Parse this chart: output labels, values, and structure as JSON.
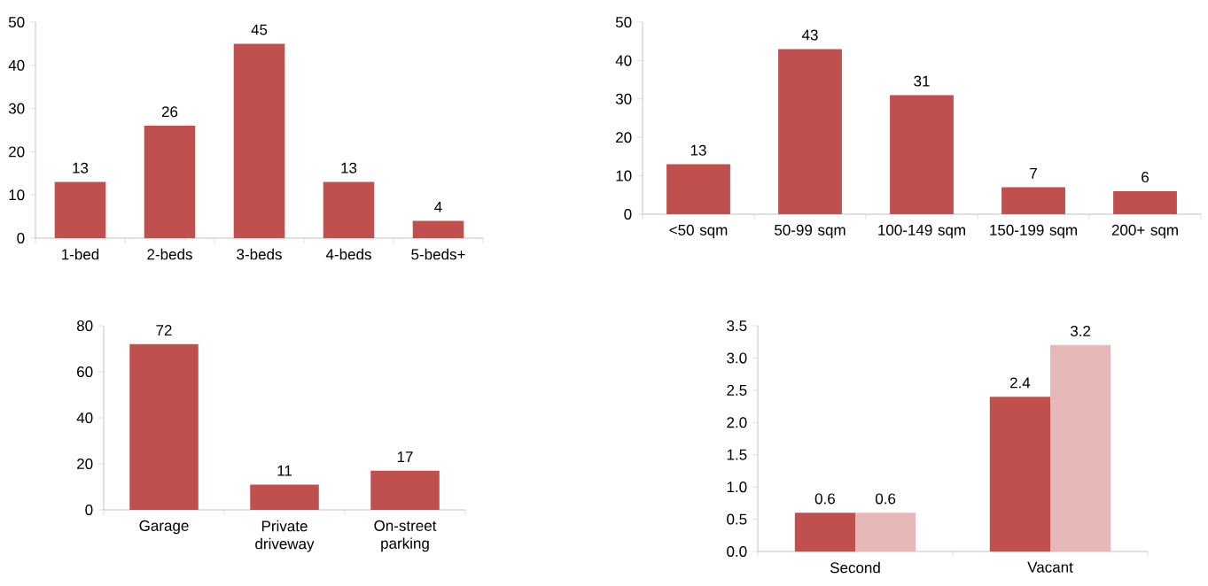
{
  "chart_data": [
    {
      "type": "bar",
      "categories": [
        "1-bed",
        "2-beds",
        "3-beds",
        "4-beds",
        "5-beds+"
      ],
      "values": [
        13,
        26,
        45,
        13,
        4
      ],
      "color": "#c0504d",
      "ylim": [
        0,
        50
      ],
      "yticks": [
        0,
        10,
        20,
        30,
        40,
        50
      ],
      "data_labels": true
    },
    {
      "type": "bar",
      "categories": [
        "<50 sqm",
        "50-99 sqm",
        "100-149 sqm",
        "150-199 sqm",
        "200+ sqm"
      ],
      "values": [
        13,
        43,
        31,
        7,
        6
      ],
      "color": "#c0504d",
      "ylim": [
        0,
        50
      ],
      "yticks": [
        0,
        10,
        20,
        30,
        40,
        50
      ],
      "data_labels": true
    },
    {
      "type": "bar",
      "categories": [
        "Garage",
        "Private driveway",
        "On-street parking"
      ],
      "values": [
        72,
        11,
        17
      ],
      "color": "#c0504d",
      "ylim": [
        0,
        80
      ],
      "yticks": [
        0,
        20,
        40,
        60,
        80
      ],
      "data_labels": true
    },
    {
      "type": "bar",
      "categories": [
        "Second",
        "Vacant"
      ],
      "series": [
        {
          "color": "#c0504d",
          "values": [
            0.6,
            2.4
          ]
        },
        {
          "color": "#e6b9b8",
          "values": [
            0.6,
            3.2
          ]
        }
      ],
      "ylim": [
        0,
        3.5
      ],
      "yticks": [
        {
          "value": 0,
          "label": "0.0"
        },
        {
          "value": 0.5,
          "label": "0.5"
        },
        {
          "value": 1,
          "label": "1.0"
        },
        {
          "value": 1.5,
          "label": "1.5"
        },
        {
          "value": 2,
          "label": "2.0"
        },
        {
          "value": 2.5,
          "label": "2.5"
        },
        {
          "value": 3,
          "label": "3.0"
        },
        {
          "value": 3.5,
          "label": "3.5"
        }
      ],
      "data_labels": true
    }
  ]
}
